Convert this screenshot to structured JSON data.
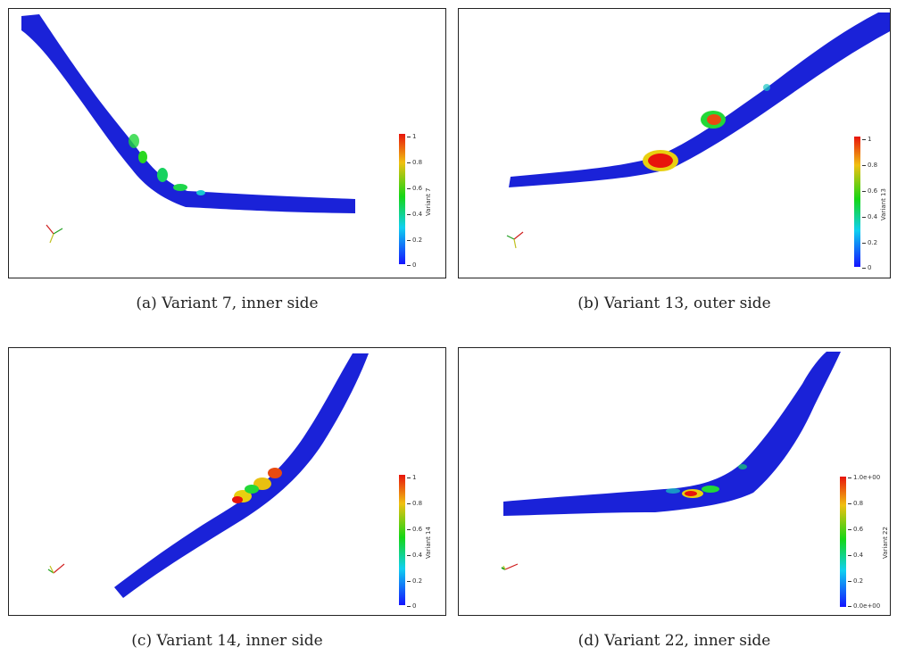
{
  "panels": [
    {
      "caption": "(a) Variant 7, inner side",
      "colorbar_title": "Variant 7",
      "ticks": [
        "1",
        "0.8",
        "0.6",
        "0.4",
        "0.2",
        "0"
      ]
    },
    {
      "caption": "(b) Variant 13, outer side",
      "colorbar_title": "Variant 13",
      "ticks": [
        "1",
        "0.8",
        "0.6",
        "0.4",
        "0.2",
        "0"
      ]
    },
    {
      "caption": "(c) Variant 14, inner side",
      "colorbar_title": "Variant 14",
      "ticks": [
        "1",
        "0.8",
        "0.6",
        "0.4",
        "0.2",
        "0"
      ]
    },
    {
      "caption": "(d) Variant 22, inner side",
      "colorbar_title": "Variant 22",
      "ticks": [
        "1.0e+00",
        "0.8",
        "0.6",
        "0.4",
        "0.2",
        "0.0e+00"
      ]
    }
  ],
  "axes_labels": {
    "x": "x",
    "y": "y",
    "z": "z"
  },
  "colors": {
    "low": "#1414ff",
    "mid": "#15d615",
    "high": "#e8140c",
    "vessel": "#1a22d8"
  }
}
